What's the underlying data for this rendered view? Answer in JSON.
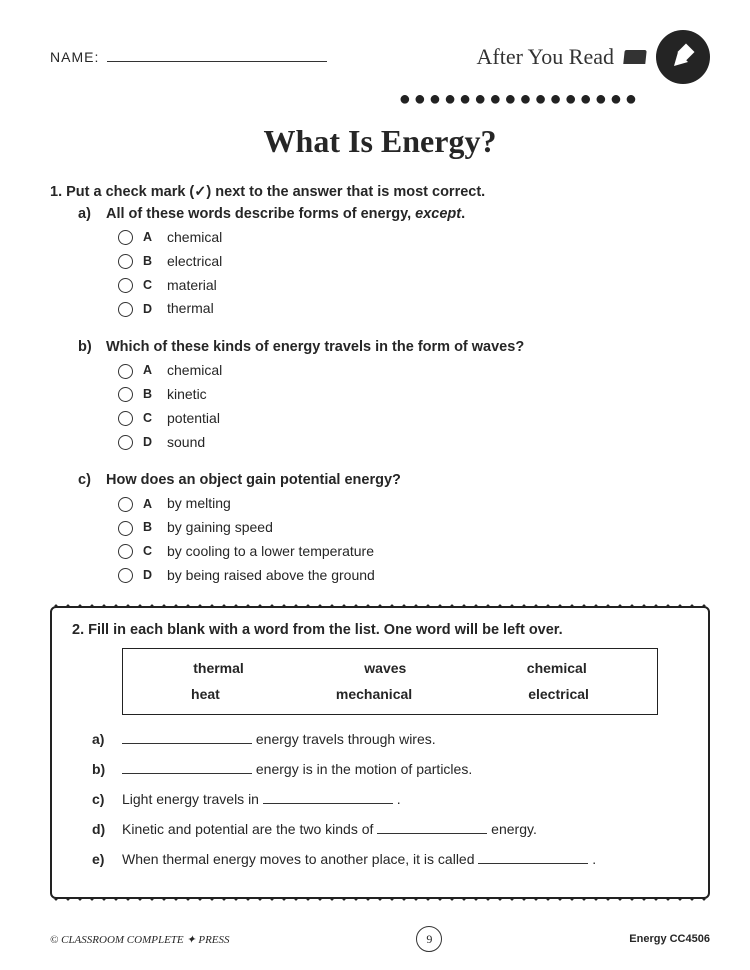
{
  "header": {
    "name_label": "NAME:",
    "after_read": "After You Read",
    "dots": "●●●●●●●●●●●●●●●●"
  },
  "title": "What Is Energy?",
  "q1": {
    "intro": "1.  Put a check mark (✓) next to the answer that is most correct.",
    "subs": [
      {
        "letter": "a)",
        "text_pre": "All of these words describe forms of energy, ",
        "text_em": "except",
        "text_post": ".",
        "options": [
          {
            "l": "A",
            "t": "chemical"
          },
          {
            "l": "B",
            "t": "electrical"
          },
          {
            "l": "C",
            "t": "material"
          },
          {
            "l": "D",
            "t": "thermal"
          }
        ]
      },
      {
        "letter": "b)",
        "text_pre": "Which of these kinds of energy travels in the form of waves?",
        "text_em": "",
        "text_post": "",
        "options": [
          {
            "l": "A",
            "t": "chemical"
          },
          {
            "l": "B",
            "t": "kinetic"
          },
          {
            "l": "C",
            "t": "potential"
          },
          {
            "l": "D",
            "t": "sound"
          }
        ]
      },
      {
        "letter": "c)",
        "text_pre": "How does an object gain potential energy?",
        "text_em": "",
        "text_post": "",
        "options": [
          {
            "l": "A",
            "t": "by melting"
          },
          {
            "l": "B",
            "t": "by gaining speed"
          },
          {
            "l": "C",
            "t": "by cooling to a lower temperature"
          },
          {
            "l": "D",
            "t": "by being raised above the ground"
          }
        ]
      }
    ]
  },
  "q2": {
    "intro": "2.  Fill in each blank with a word from the list. One word will be left over.",
    "wordbank": {
      "row1": [
        "thermal",
        "waves",
        "chemical"
      ],
      "row2": [
        "heat",
        "mechanical",
        "electrical"
      ]
    },
    "items": [
      {
        "l": "a)",
        "pre": "",
        "post": " energy travels through wires.",
        "blank_first": true,
        "bw": "w130"
      },
      {
        "l": "b)",
        "pre": "",
        "post": " energy is in the motion of particles.",
        "blank_first": true,
        "bw": "w130"
      },
      {
        "l": "c)",
        "pre": "Light energy travels in ",
        "post": " .",
        "blank_first": false,
        "bw": "w130"
      },
      {
        "l": "d)",
        "pre": "Kinetic and potential are the two kinds of ",
        "post": " energy.",
        "blank_first": false,
        "bw": "w110"
      },
      {
        "l": "e)",
        "pre": "When thermal energy moves to another place, it is called ",
        "post": " .",
        "blank_first": false,
        "bw": "w110"
      }
    ]
  },
  "footer": {
    "left": "© CLASSROOM COMPLETE ✦ PRESS",
    "page": "9",
    "right": "Energy  CC4506"
  }
}
